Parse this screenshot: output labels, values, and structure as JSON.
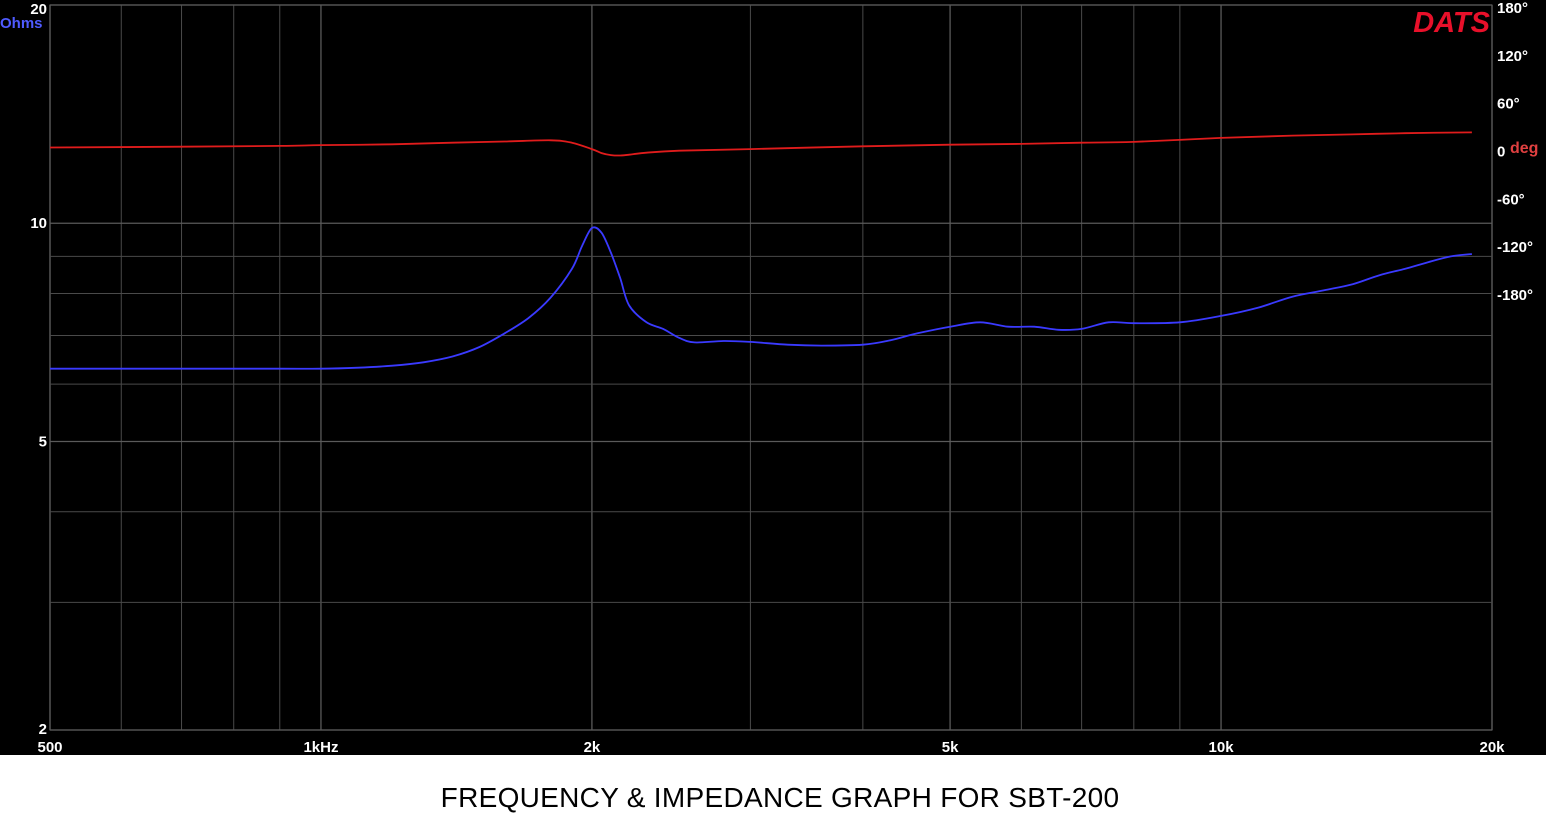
{
  "caption": "FREQUENCY & IMPEDANCE GRAPH FOR SBT-200",
  "chart_data": {
    "type": "line",
    "title": "",
    "brand": "DATS",
    "left_unit": "Ohms",
    "right_unit": "deg",
    "x_scale": "log",
    "xlim": [
      500,
      20000
    ],
    "x_ticks": [
      {
        "value": 500,
        "label": "500"
      },
      {
        "value": 1000,
        "label": "1kHz"
      },
      {
        "value": 2000,
        "label": "2k"
      },
      {
        "value": 5000,
        "label": "5k"
      },
      {
        "value": 10000,
        "label": "10k"
      },
      {
        "value": 20000,
        "label": "20k"
      }
    ],
    "x_minor_gridlines": [
      600,
      700,
      800,
      900,
      3000,
      4000,
      6000,
      7000,
      8000,
      9000
    ],
    "y_scale": "log",
    "ylim": [
      2,
      20
    ],
    "y_ticks": [
      {
        "value": 20,
        "label": "20"
      },
      {
        "value": 10,
        "label": "10"
      },
      {
        "value": 5,
        "label": "5"
      },
      {
        "value": 2,
        "label": "2"
      }
    ],
    "y_minor_gridlines": [
      9,
      8,
      7,
      6,
      4,
      3
    ],
    "y2lim": [
      -180,
      180
    ],
    "y2_ticks": [
      {
        "value": 180,
        "label": "180°"
      },
      {
        "value": 120,
        "label": "120°"
      },
      {
        "value": 60,
        "label": "60°"
      },
      {
        "value": 0,
        "label": "0"
      },
      {
        "value": -60,
        "label": "-60°"
      },
      {
        "value": -120,
        "label": "-120°"
      },
      {
        "value": -180,
        "label": "-180°"
      }
    ],
    "grid": true,
    "colors": {
      "impedance": "#3a3aff",
      "phase": "#e01c1c",
      "brand": "#e8102a",
      "grid": "#4a4a4a",
      "axis_text": "#ffffff",
      "left_unit": "#4f5bff",
      "right_unit": "#e04040"
    },
    "series": [
      {
        "axis": "left",
        "x": [
          500,
          700,
          900,
          1000,
          1100,
          1200,
          1300,
          1400,
          1500,
          1600,
          1700,
          1800,
          1900,
          1950,
          2000,
          2050,
          2100,
          2150,
          2200,
          2300,
          2400,
          2500,
          2600,
          2800,
          3000,
          3300,
          3600,
          4000,
          4300,
          4600,
          5000,
          5400,
          5800,
          6200,
          6600,
          7000,
          7500,
          8000,
          9000,
          10000,
          11000,
          12000,
          13000,
          14000,
          15000,
          16000,
          17000,
          18000,
          19000
        ],
        "values": [
          6.3,
          6.3,
          6.3,
          6.3,
          6.32,
          6.36,
          6.43,
          6.55,
          6.75,
          7.05,
          7.4,
          7.9,
          8.65,
          9.3,
          9.85,
          9.7,
          9.1,
          8.4,
          7.7,
          7.3,
          7.15,
          6.95,
          6.85,
          6.88,
          6.86,
          6.8,
          6.78,
          6.8,
          6.9,
          7.05,
          7.2,
          7.3,
          7.2,
          7.2,
          7.13,
          7.15,
          7.3,
          7.28,
          7.3,
          7.45,
          7.65,
          7.92,
          8.08,
          8.24,
          8.48,
          8.65,
          8.84,
          9.0,
          9.07
        ]
      },
      {
        "axis": "right",
        "x": [
          500,
          700,
          900,
          1000,
          1200,
          1400,
          1600,
          1800,
          1900,
          2000,
          2050,
          2100,
          2150,
          2200,
          2300,
          2500,
          3000,
          4000,
          5000,
          6000,
          7000,
          8000,
          10000,
          12000,
          14000,
          16000,
          19000
        ],
        "values": [
          5,
          6,
          7,
          8,
          9,
          11,
          12.5,
          14,
          11,
          3,
          -2,
          -4.5,
          -5,
          -4,
          -1.5,
          1,
          3,
          6.5,
          8.5,
          9.5,
          11,
          12,
          17,
          20,
          21.5,
          23,
          24
        ]
      }
    ]
  }
}
